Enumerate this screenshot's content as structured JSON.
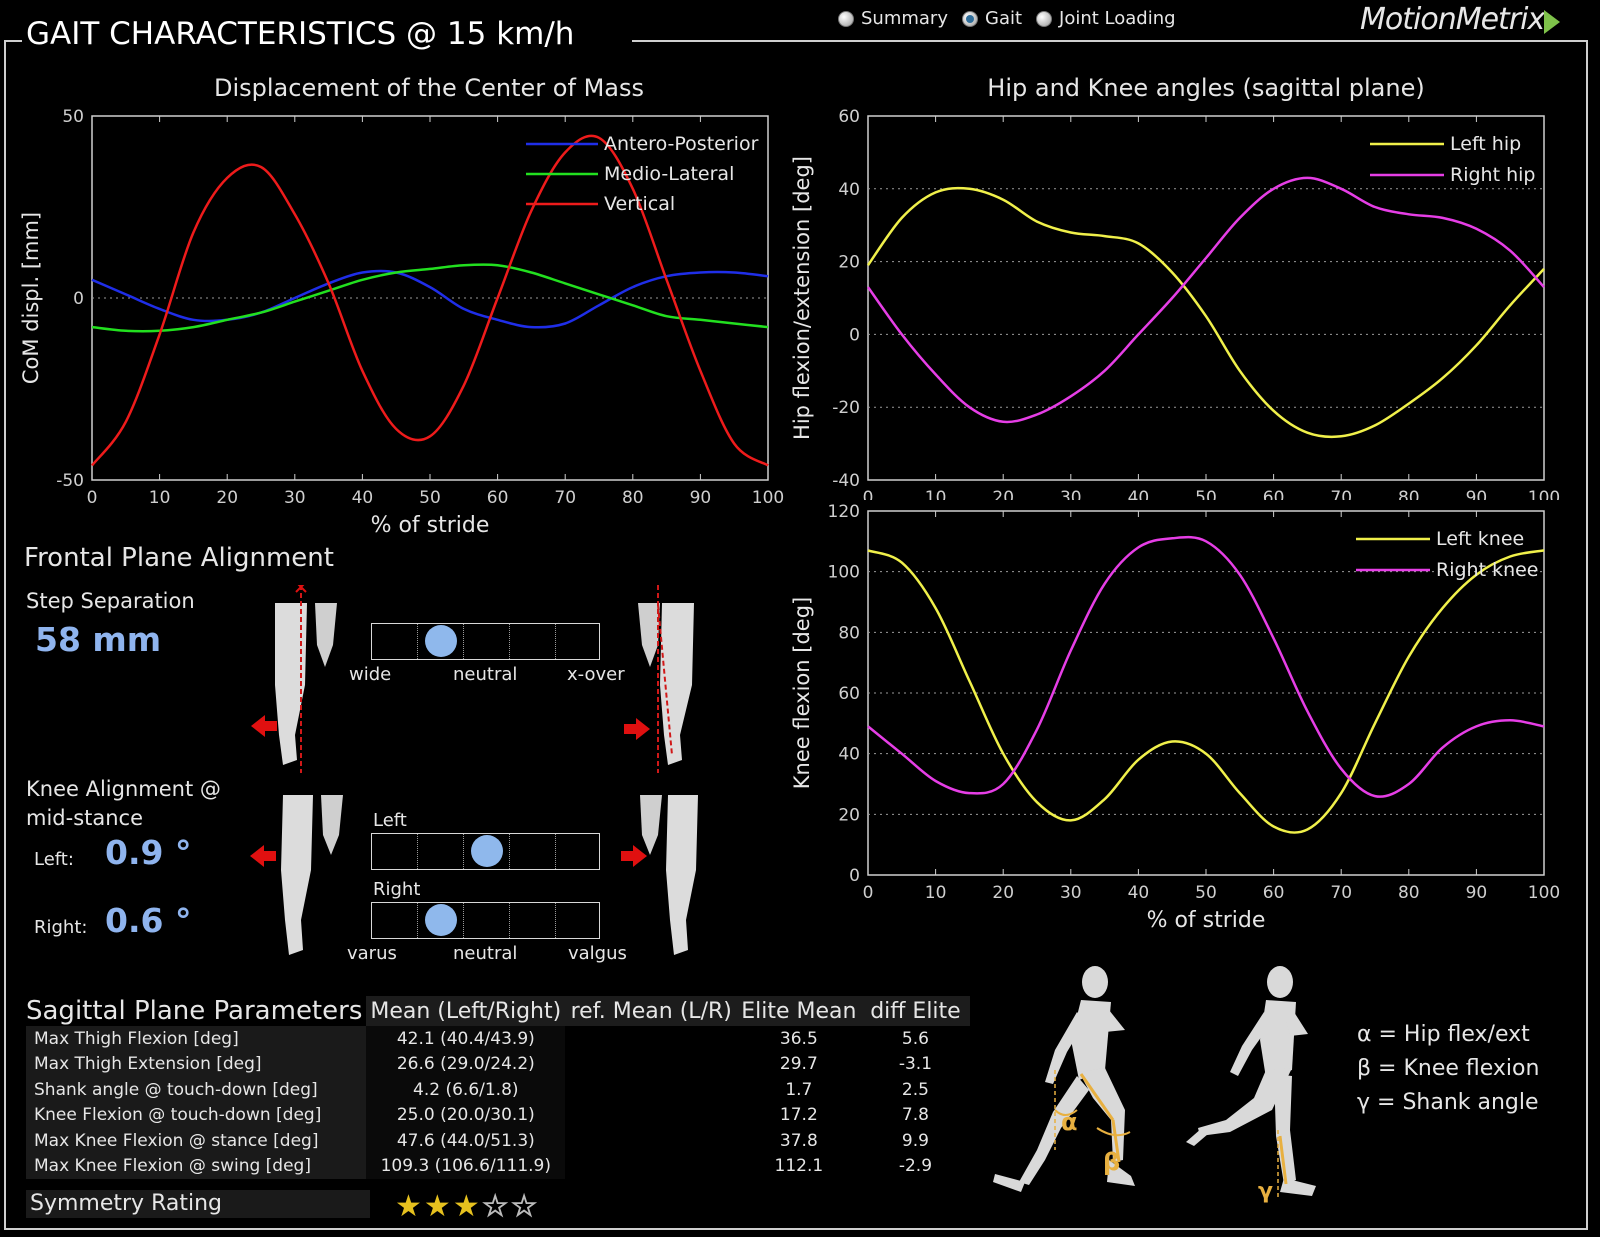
{
  "header": {
    "title": "GAIT CHARACTERISTICS @ 15 km/h",
    "brand": "MotionMetrix",
    "views": [
      {
        "label": "Summary",
        "selected": false
      },
      {
        "label": "Gait",
        "selected": true
      },
      {
        "label": "Joint Loading",
        "selected": false
      }
    ]
  },
  "chart_data": [
    {
      "type": "line",
      "title": "Displacement of the Center of Mass",
      "xlabel": "% of stride",
      "ylabel": "CoM displ. [mm]",
      "xlim": [
        0,
        100
      ],
      "ylim": [
        -50,
        50
      ],
      "xticks": [
        "0",
        "10",
        "20",
        "30",
        "40",
        "50",
        "60",
        "70",
        "80",
        "90",
        "100"
      ],
      "yticks": [
        "-50",
        "0",
        "50"
      ],
      "grid": "zero-line",
      "legend": "top-right",
      "x": [
        0,
        5,
        10,
        15,
        20,
        25,
        30,
        35,
        40,
        45,
        50,
        55,
        60,
        65,
        70,
        75,
        80,
        85,
        90,
        95,
        100
      ],
      "series": [
        {
          "name": "Antero-Posterior",
          "color": "#1f2ee8",
          "values": [
            5,
            1,
            -3,
            -6,
            -6,
            -4,
            0,
            4,
            7,
            7,
            3,
            -3,
            -6,
            -8,
            -7,
            -2,
            3,
            6,
            7,
            7,
            6
          ]
        },
        {
          "name": "Medio-Lateral",
          "color": "#22e01f",
          "values": [
            -8,
            -9,
            -9,
            -8,
            -6,
            -4,
            -1,
            2,
            5,
            7,
            8,
            9,
            9,
            7,
            4,
            1,
            -2,
            -5,
            -6,
            -7,
            -8
          ]
        },
        {
          "name": "Vertical",
          "color": "#ee1b1b",
          "values": [
            -46,
            -34,
            -10,
            18,
            33,
            36,
            23,
            4,
            -20,
            -36,
            -38,
            -24,
            0,
            24,
            40,
            44,
            30,
            5,
            -20,
            -40,
            -46
          ]
        }
      ]
    },
    {
      "type": "line",
      "title": "Hip and Knee angles (sagittal plane)",
      "xlabel": "",
      "ylabel": "Hip flexion/extension [deg]",
      "xlim": [
        0,
        100
      ],
      "ylim": [
        -40,
        60
      ],
      "xticks": [
        "0",
        "10",
        "20",
        "30",
        "40",
        "50",
        "60",
        "70",
        "80",
        "90",
        "100"
      ],
      "yticks": [
        "-40",
        "-20",
        "0",
        "20",
        "40",
        "60"
      ],
      "grid": "dotted",
      "legend": "top-right",
      "x": [
        0,
        5,
        10,
        15,
        20,
        25,
        30,
        35,
        40,
        45,
        50,
        55,
        60,
        65,
        70,
        75,
        80,
        85,
        90,
        95,
        100
      ],
      "series": [
        {
          "name": "Left hip",
          "color": "#f0f04a",
          "values": [
            19,
            32,
            39,
            40,
            37,
            31,
            28,
            27,
            25,
            17,
            5,
            -10,
            -21,
            -27,
            -28,
            -25,
            -19,
            -12,
            -3,
            8,
            18
          ]
        },
        {
          "name": "Right hip",
          "color": "#e63ee6",
          "values": [
            13,
            0,
            -11,
            -20,
            -24,
            -22,
            -17,
            -10,
            0,
            10,
            21,
            32,
            40,
            43,
            40,
            35,
            33,
            32,
            29,
            23,
            13
          ]
        }
      ]
    },
    {
      "type": "line",
      "title": "",
      "xlabel": "% of stride",
      "ylabel": "Knee flexion [deg]",
      "xlim": [
        0,
        100
      ],
      "ylim": [
        0,
        120
      ],
      "xticks": [
        "0",
        "10",
        "20",
        "30",
        "40",
        "50",
        "60",
        "70",
        "80",
        "90",
        "100"
      ],
      "yticks": [
        "0",
        "20",
        "40",
        "60",
        "80",
        "100",
        "120"
      ],
      "grid": "dotted",
      "legend": "top-right",
      "x": [
        0,
        5,
        10,
        15,
        20,
        25,
        30,
        35,
        40,
        45,
        50,
        55,
        60,
        65,
        70,
        75,
        80,
        85,
        90,
        95,
        100
      ],
      "series": [
        {
          "name": "Left knee",
          "color": "#f0f04a",
          "values": [
            107,
            103,
            88,
            64,
            40,
            24,
            18,
            25,
            38,
            44,
            40,
            27,
            16,
            15,
            27,
            50,
            72,
            88,
            99,
            105,
            107
          ]
        },
        {
          "name": "Right knee",
          "color": "#e63ee6",
          "values": [
            49,
            40,
            31,
            27,
            30,
            48,
            74,
            96,
            108,
            111,
            110,
            99,
            78,
            54,
            35,
            26,
            30,
            42,
            49,
            51,
            49
          ]
        }
      ]
    }
  ],
  "frontal": {
    "title": "Frontal Plane Alignment",
    "step_label": "Step Separation",
    "step_value": "58 mm",
    "step_position": 0.3,
    "step_scale": [
      "wide",
      "neutral",
      "x-over"
    ],
    "knee_label_1": "Knee Alignment @",
    "knee_label_2": "mid-stance",
    "left_label": "Left:",
    "left_value": "0.9 °",
    "right_label": "Right:",
    "right_value": "0.6 °",
    "knee_left_bar_label": "Left",
    "knee_right_bar_label": "Right",
    "knee_left_position": 0.5,
    "knee_right_position": 0.3,
    "knee_scale": [
      "varus",
      "neutral",
      "valgus"
    ]
  },
  "sagittal": {
    "title": "Sagittal Plane Parameters",
    "columns": [
      "Mean (Left/Right)",
      "ref. Mean (L/R)",
      "Elite Mean",
      "diff Elite"
    ],
    "rows": [
      {
        "name": "Max Thigh Flexion [deg]",
        "mean": "42.1 (40.4/43.9)",
        "ref": "",
        "elite": "36.5",
        "diff": "5.6"
      },
      {
        "name": "Max Thigh Extension [deg]",
        "mean": "26.6 (29.0/24.2)",
        "ref": "",
        "elite": "29.7",
        "diff": "-3.1"
      },
      {
        "name": "Shank angle @ touch-down [deg]",
        "mean": "4.2 (6.6/1.8)",
        "ref": "",
        "elite": "1.7",
        "diff": "2.5"
      },
      {
        "name": "Knee Flexion @ touch-down [deg]",
        "mean": "25.0 (20.0/30.1)",
        "ref": "",
        "elite": "17.2",
        "diff": "7.8"
      },
      {
        "name": "Max Knee Flexion @ stance [deg]",
        "mean": "47.6 (44.0/51.3)",
        "ref": "",
        "elite": "37.8",
        "diff": "9.9"
      },
      {
        "name": "Max Knee Flexion @ swing [deg]",
        "mean": "109.3 (106.6/111.9)",
        "ref": "",
        "elite": "112.1",
        "diff": "-2.9"
      }
    ],
    "symmetry_label": "Symmetry Rating",
    "symmetry_rating": 3,
    "symmetry_max": 5
  },
  "angles_legend": {
    "alpha": "α = Hip flex/ext",
    "beta": "β = Knee flexion",
    "gamma": "γ = Shank angle",
    "alpha_sym": "α",
    "beta_sym": "β",
    "gamma_sym": "γ"
  }
}
